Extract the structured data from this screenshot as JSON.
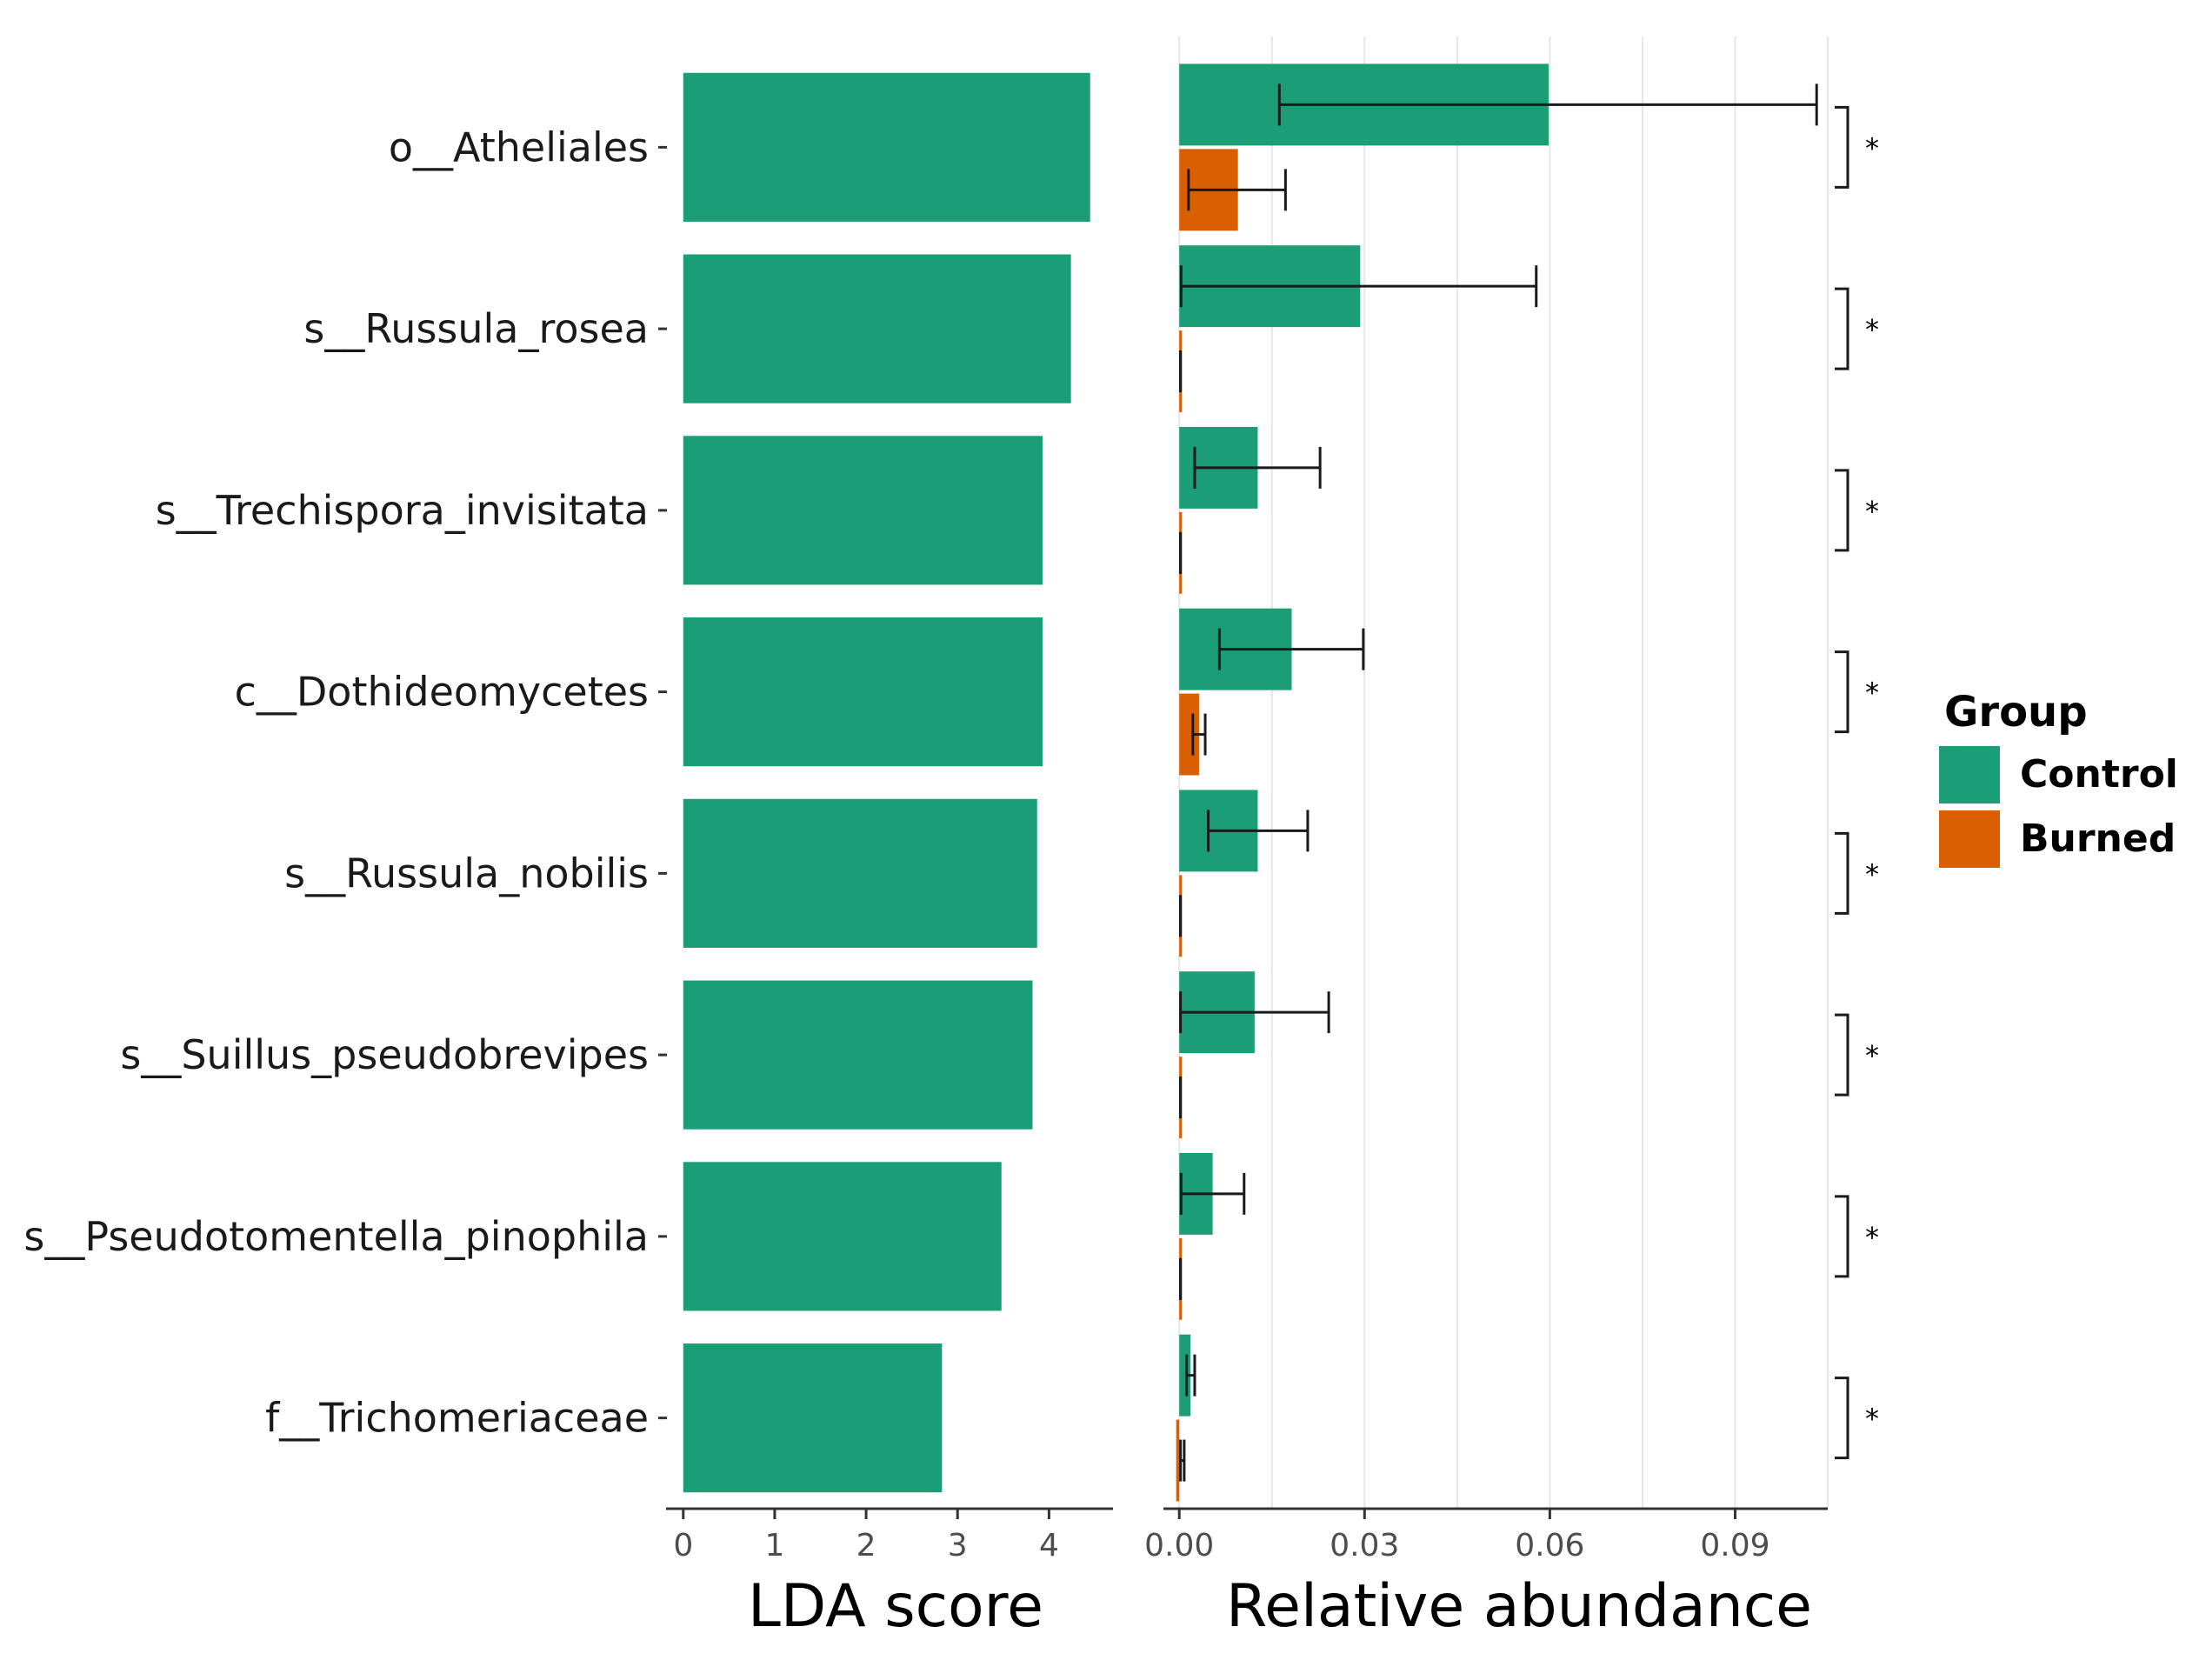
{
  "chart_data": {
    "type": "bar",
    "categories": [
      "o__Atheliales",
      "s__Russula_rosea",
      "s__Trechispora_invisitata",
      "c__Dothideomycetes",
      "s__Russula_nobilis",
      "s__Suillus_pseudobrevipes",
      "s__Pseudotomentella_pinophila",
      "f__Trichomeriaceae"
    ],
    "lda": {
      "xlabel": "LDA score",
      "xlim": [
        -0.15,
        4.7
      ],
      "ticks": [
        0,
        1,
        2,
        3,
        4
      ],
      "tick_labels": [
        "0",
        "1",
        "2",
        "3",
        "4"
      ],
      "values": [
        4.45,
        4.24,
        3.93,
        3.93,
        3.87,
        3.82,
        3.48,
        2.83
      ],
      "group": "Control"
    },
    "abundance": {
      "xlabel": "Relative abundance",
      "xlim": [
        -0.002,
        0.105
      ],
      "ticks": [
        0,
        0.03,
        0.06,
        0.09
      ],
      "tick_labels": [
        "0.00",
        "0.03",
        "0.06",
        "0.09"
      ],
      "series": [
        {
          "name": "Control",
          "values": [
            0.0598,
            0.0293,
            0.0127,
            0.0182,
            0.0127,
            0.0122,
            0.0054,
            0.0018
          ],
          "err_low": [
            0.0162,
            0.0003,
            0.0025,
            0.0065,
            0.0047,
            0.0002,
            0.0003,
            0.0012
          ],
          "err_high": [
            0.1032,
            0.0578,
            0.0228,
            0.0298,
            0.0208,
            0.0242,
            0.0105,
            0.0025
          ]
        },
        {
          "name": "Burned",
          "values": [
            0.0095,
            0.0002,
            0.0002,
            0.0032,
            0.0002,
            0.0002,
            0.0002,
            -0.0005
          ],
          "err_low": [
            0.0015,
            0.0002,
            0.0002,
            0.0022,
            0.0002,
            0.0002,
            0.0002,
            0.0002
          ],
          "err_high": [
            0.0172,
            0.0002,
            0.0002,
            0.0042,
            0.0002,
            0.0002,
            0.0002,
            0.0008
          ]
        }
      ]
    },
    "significance": [
      "*",
      "*",
      "*",
      "*",
      "*",
      "*",
      "*",
      "*"
    ],
    "legend": {
      "title": "Group",
      "entries": [
        {
          "name": "Control",
          "color": "#1b9e77"
        },
        {
          "name": "Burned",
          "color": "#d95f02"
        }
      ],
      "placement": "right"
    }
  }
}
